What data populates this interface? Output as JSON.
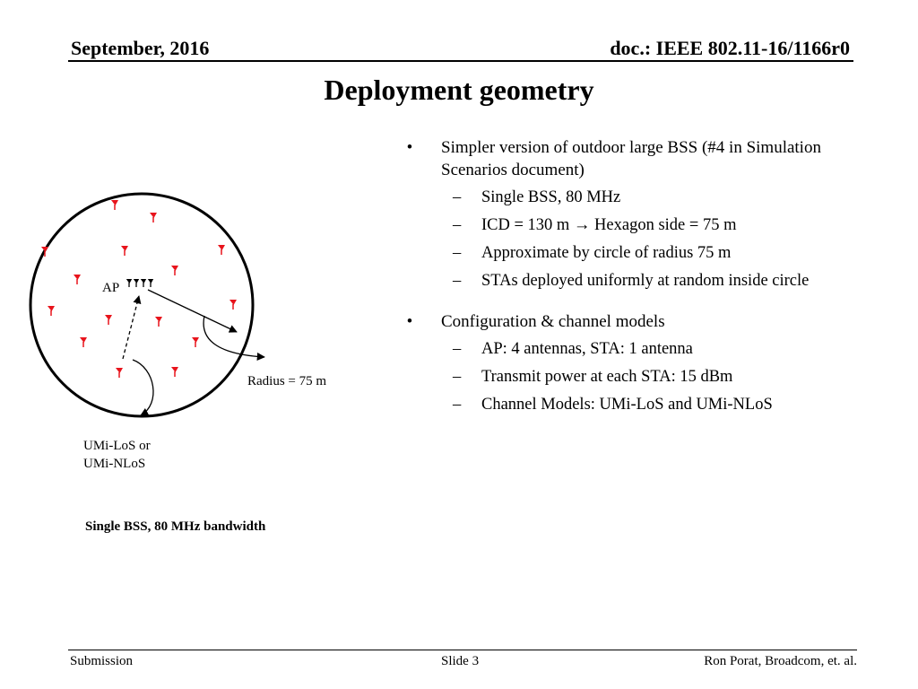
{
  "header": {
    "date": "September, 2016",
    "doc": "doc.: IEEE 802.11-16/1166r0"
  },
  "title": "Deployment geometry",
  "bullets": [
    {
      "text": "Simpler version of outdoor large BSS (#4 in Simulation Scenarios document)",
      "sub": [
        "Single BSS, 80 MHz",
        "ICD = 130 m → Hexagon side = 75 m",
        "Approximate by circle of radius 75 m",
        "STAs deployed uniformly at random inside circle"
      ]
    },
    {
      "text": "Configuration & channel models",
      "sub": [
        "AP: 4 antennas, STA: 1 antenna",
        "Transmit power at each STA: 15 dBm",
        "Channel Models: UMi-LoS and UMi-NLoS"
      ]
    }
  ],
  "diagram": {
    "ap_label": "AP",
    "radius_label": "Radius = 75 m",
    "channel_label_line1": "UMi-LoS or",
    "channel_label_line2": "UMi-NLoS",
    "caption": "Single BSS, 80 MHz bandwidth",
    "sta_color": "#e8141c",
    "sta_icon": "antenna-icon"
  },
  "footer": {
    "left": "Submission",
    "center": "Slide 3",
    "right": "Ron Porat, Broadcom, et. al."
  }
}
